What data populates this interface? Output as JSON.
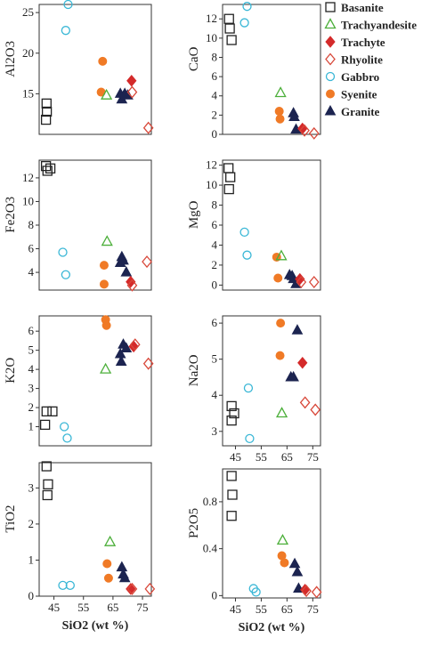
{
  "colors": {
    "Basanite": "#222222",
    "Trachyandesite": "#4caf3a",
    "Trachyte": "#d42a2a",
    "Rhyolite": "#d8483a",
    "Gabbro": "#3ab7d6",
    "Syenite": "#f07a26",
    "Granite": "#1c2450"
  },
  "legend": [
    {
      "name": "Basanite",
      "marker": "square-open"
    },
    {
      "name": "Trachyandesite",
      "marker": "triangle-open"
    },
    {
      "name": "Trachyte",
      "marker": "diamond-filled"
    },
    {
      "name": "Rhyolite",
      "marker": "diamond-open"
    },
    {
      "name": "Gabbro",
      "marker": "circle-open"
    },
    {
      "name": "Syenite",
      "marker": "circle-filled"
    },
    {
      "name": "Granite",
      "marker": "triangle-filled"
    }
  ],
  "chart_data": [
    {
      "type": "scatter",
      "ylabel": "Al2O3",
      "ylim": [
        10,
        26
      ],
      "yticks": [
        15,
        20,
        25
      ],
      "xlim": [
        40,
        78
      ],
      "xticks": [],
      "xlabel": "",
      "series": [
        {
          "name": "Basanite",
          "points": [
            [
              42.3,
              11.8
            ],
            [
              42.6,
              12.8
            ],
            [
              42.5,
              13.8
            ]
          ]
        },
        {
          "name": "Gabbro",
          "points": [
            [
              49.8,
              26.0
            ],
            [
              49.0,
              22.8
            ]
          ]
        },
        {
          "name": "Syenite",
          "points": [
            [
              61.5,
              19.0
            ],
            [
              61.0,
              15.2
            ]
          ]
        },
        {
          "name": "Trachyandesite",
          "points": [
            [
              62.8,
              14.8
            ]
          ]
        },
        {
          "name": "Granite",
          "points": [
            [
              67.5,
              15.0
            ],
            [
              68.0,
              14.3
            ],
            [
              69.0,
              15.0
            ],
            [
              70.0,
              14.8
            ]
          ]
        },
        {
          "name": "Trachyte",
          "points": [
            [
              71.3,
              16.6
            ]
          ]
        },
        {
          "name": "Rhyolite",
          "points": [
            [
              71.5,
              15.2
            ],
            [
              77.0,
              10.8
            ]
          ]
        }
      ]
    },
    {
      "type": "scatter",
      "ylabel": "CaO",
      "ylim": [
        0,
        13.5
      ],
      "yticks": [
        0,
        2,
        4,
        6,
        8,
        10,
        12
      ],
      "xlim": [
        40,
        78
      ],
      "xticks": [],
      "xlabel": "",
      "series": [
        {
          "name": "Basanite",
          "points": [
            [
              42.5,
              12.0
            ],
            [
              42.8,
              11.0
            ],
            [
              43.5,
              9.8
            ]
          ]
        },
        {
          "name": "Gabbro",
          "points": [
            [
              49.5,
              13.3
            ],
            [
              48.5,
              11.6
            ]
          ]
        },
        {
          "name": "Trachyandesite",
          "points": [
            [
              62.5,
              4.3
            ]
          ]
        },
        {
          "name": "Syenite",
          "points": [
            [
              62.0,
              2.4
            ],
            [
              62.3,
              1.6
            ]
          ]
        },
        {
          "name": "Granite",
          "points": [
            [
              67.5,
              2.2
            ],
            [
              67.8,
              1.8
            ],
            [
              68.5,
              0.5
            ]
          ]
        },
        {
          "name": "Trachyte",
          "points": [
            [
              71.0,
              0.6
            ]
          ]
        },
        {
          "name": "Rhyolite",
          "points": [
            [
              71.8,
              0.4
            ],
            [
              75.5,
              0.1
            ]
          ]
        }
      ]
    },
    {
      "type": "scatter",
      "ylabel": "Fe2O3",
      "ylim": [
        2.5,
        13.5
      ],
      "yticks": [
        4,
        6,
        8,
        10,
        12
      ],
      "xlim": [
        40,
        78
      ],
      "xticks": [],
      "xlabel": "",
      "series": [
        {
          "name": "Basanite",
          "points": [
            [
              42.3,
              13.0
            ],
            [
              42.8,
              12.6
            ],
            [
              43.8,
              12.8
            ]
          ]
        },
        {
          "name": "Gabbro",
          "points": [
            [
              48.0,
              5.7
            ],
            [
              49.0,
              3.8
            ]
          ]
        },
        {
          "name": "Trachyandesite",
          "points": [
            [
              63.0,
              6.6
            ]
          ]
        },
        {
          "name": "Syenite",
          "points": [
            [
              62.0,
              4.6
            ],
            [
              62.0,
              3.0
            ]
          ]
        },
        {
          "name": "Granite",
          "points": [
            [
              67.5,
              4.8
            ],
            [
              68.0,
              5.3
            ],
            [
              68.5,
              5.0
            ],
            [
              69.5,
              4.0
            ]
          ]
        },
        {
          "name": "Trachyte",
          "points": [
            [
              71.0,
              3.2
            ]
          ]
        },
        {
          "name": "Rhyolite",
          "points": [
            [
              71.5,
              2.9
            ],
            [
              76.5,
              4.9
            ]
          ]
        }
      ]
    },
    {
      "type": "scatter",
      "ylabel": "MgO",
      "ylim": [
        -0.5,
        12.5
      ],
      "yticks": [
        0,
        2,
        4,
        6,
        8,
        10,
        12
      ],
      "xlim": [
        40,
        78
      ],
      "xticks": [],
      "xlabel": "",
      "series": [
        {
          "name": "Basanite",
          "points": [
            [
              42.3,
              11.7
            ],
            [
              43.0,
              10.8
            ],
            [
              42.5,
              9.6
            ]
          ]
        },
        {
          "name": "Gabbro",
          "points": [
            [
              48.5,
              5.3
            ],
            [
              49.5,
              3.0
            ]
          ]
        },
        {
          "name": "Syenite",
          "points": [
            [
              61.0,
              2.8
            ],
            [
              61.5,
              0.7
            ]
          ]
        },
        {
          "name": "Trachyandesite",
          "points": [
            [
              62.8,
              2.9
            ]
          ]
        },
        {
          "name": "Granite",
          "points": [
            [
              66.0,
              1.0
            ],
            [
              67.0,
              0.9
            ],
            [
              67.5,
              0.6
            ],
            [
              68.5,
              0.1
            ]
          ]
        },
        {
          "name": "Trachyte",
          "points": [
            [
              70.0,
              0.6
            ]
          ]
        },
        {
          "name": "Rhyolite",
          "points": [
            [
              70.5,
              0.3
            ],
            [
              75.5,
              0.3
            ]
          ]
        }
      ]
    },
    {
      "type": "scatter",
      "ylabel": "K2O",
      "ylim": [
        0,
        6.8
      ],
      "yticks": [
        1,
        2,
        3,
        4,
        5,
        6
      ],
      "xlim": [
        40,
        78
      ],
      "xticks": [],
      "xlabel": "",
      "series": [
        {
          "name": "Basanite",
          "points": [
            [
              42.5,
              1.8
            ],
            [
              44.5,
              1.8
            ],
            [
              42.0,
              1.1
            ]
          ]
        },
        {
          "name": "Gabbro",
          "points": [
            [
              48.5,
              1.0
            ],
            [
              49.5,
              0.4
            ]
          ]
        },
        {
          "name": "Syenite",
          "points": [
            [
              62.5,
              6.6
            ],
            [
              62.8,
              6.3
            ]
          ]
        },
        {
          "name": "Trachyandesite",
          "points": [
            [
              62.5,
              4.0
            ]
          ]
        },
        {
          "name": "Granite",
          "points": [
            [
              67.5,
              4.8
            ],
            [
              67.8,
              4.4
            ],
            [
              68.5,
              5.3
            ],
            [
              69.5,
              5.1
            ]
          ]
        },
        {
          "name": "Trachyte",
          "points": [
            [
              72.0,
              5.2
            ]
          ]
        },
        {
          "name": "Rhyolite",
          "points": [
            [
              72.5,
              5.3
            ],
            [
              77.0,
              4.3
            ]
          ]
        }
      ]
    },
    {
      "type": "scatter",
      "ylabel": "Na2O",
      "ylim": [
        2.6,
        6.2
      ],
      "yticks": [
        3,
        4,
        5,
        6
      ],
      "xlim": [
        40,
        78
      ],
      "xticks": [
        45,
        55,
        65,
        75
      ],
      "xlabel": "",
      "series": [
        {
          "name": "Basanite",
          "points": [
            [
              43.5,
              3.7
            ],
            [
              44.5,
              3.5
            ],
            [
              43.5,
              3.3
            ]
          ]
        },
        {
          "name": "Gabbro",
          "points": [
            [
              50.0,
              4.2
            ],
            [
              50.5,
              2.8
            ]
          ]
        },
        {
          "name": "Syenite",
          "points": [
            [
              62.5,
              6.0
            ],
            [
              62.3,
              5.1
            ]
          ]
        },
        {
          "name": "Trachyandesite",
          "points": [
            [
              63.0,
              3.5
            ]
          ]
        },
        {
          "name": "Granite",
          "points": [
            [
              66.5,
              4.5
            ],
            [
              67.5,
              4.5
            ],
            [
              69.0,
              5.8
            ]
          ]
        },
        {
          "name": "Trachyte",
          "points": [
            [
              71.0,
              4.9
            ]
          ]
        },
        {
          "name": "Rhyolite",
          "points": [
            [
              72.0,
              3.8
            ],
            [
              76.0,
              3.6
            ]
          ]
        }
      ]
    },
    {
      "type": "scatter",
      "ylabel": "TiO2",
      "ylim": [
        0,
        3.7
      ],
      "yticks": [
        0,
        1,
        2,
        3
      ],
      "xlim": [
        40,
        78
      ],
      "xticks": [
        45,
        55,
        65,
        75
      ],
      "xlabel": "SiO2 (wt %)",
      "series": [
        {
          "name": "Basanite",
          "points": [
            [
              42.5,
              3.6
            ],
            [
              43.0,
              3.1
            ],
            [
              42.8,
              2.8
            ]
          ]
        },
        {
          "name": "Gabbro",
          "points": [
            [
              48.0,
              0.3
            ],
            [
              50.5,
              0.3
            ]
          ]
        },
        {
          "name": "Trachyandesite",
          "points": [
            [
              64.0,
              1.5
            ]
          ]
        },
        {
          "name": "Syenite",
          "points": [
            [
              63.0,
              0.9
            ],
            [
              63.5,
              0.5
            ]
          ]
        },
        {
          "name": "Granite",
          "points": [
            [
              68.0,
              0.8
            ],
            [
              68.5,
              0.6
            ],
            [
              69.0,
              0.5
            ]
          ]
        },
        {
          "name": "Trachyte",
          "points": [
            [
              71.0,
              0.2
            ]
          ]
        },
        {
          "name": "Rhyolite",
          "points": [
            [
              71.5,
              0.2
            ],
            [
              77.5,
              0.2
            ]
          ]
        }
      ]
    },
    {
      "type": "scatter",
      "ylabel": "P2O5",
      "ylim": [
        -0.02,
        1.08
      ],
      "yticks": [
        0,
        0.4,
        0.8
      ],
      "xlim": [
        40,
        78
      ],
      "xticks": [
        45,
        55,
        65,
        75
      ],
      "xlabel": "SiO2 (wt %)",
      "series": [
        {
          "name": "Basanite",
          "points": [
            [
              43.5,
              1.02
            ],
            [
              43.8,
              0.86
            ],
            [
              43.5,
              0.68
            ]
          ]
        },
        {
          "name": "Gabbro",
          "points": [
            [
              52.0,
              0.06
            ],
            [
              53.0,
              0.03
            ]
          ]
        },
        {
          "name": "Trachyandesite",
          "points": [
            [
              63.3,
              0.47
            ]
          ]
        },
        {
          "name": "Syenite",
          "points": [
            [
              63.0,
              0.34
            ],
            [
              64.0,
              0.28
            ]
          ]
        },
        {
          "name": "Granite",
          "points": [
            [
              68.0,
              0.27
            ],
            [
              69.0,
              0.2
            ],
            [
              69.5,
              0.06
            ]
          ]
        },
        {
          "name": "Trachyte",
          "points": [
            [
              72.0,
              0.05
            ]
          ]
        },
        {
          "name": "Rhyolite",
          "points": [
            [
              72.5,
              0.04
            ],
            [
              76.5,
              0.03
            ]
          ]
        }
      ]
    }
  ]
}
